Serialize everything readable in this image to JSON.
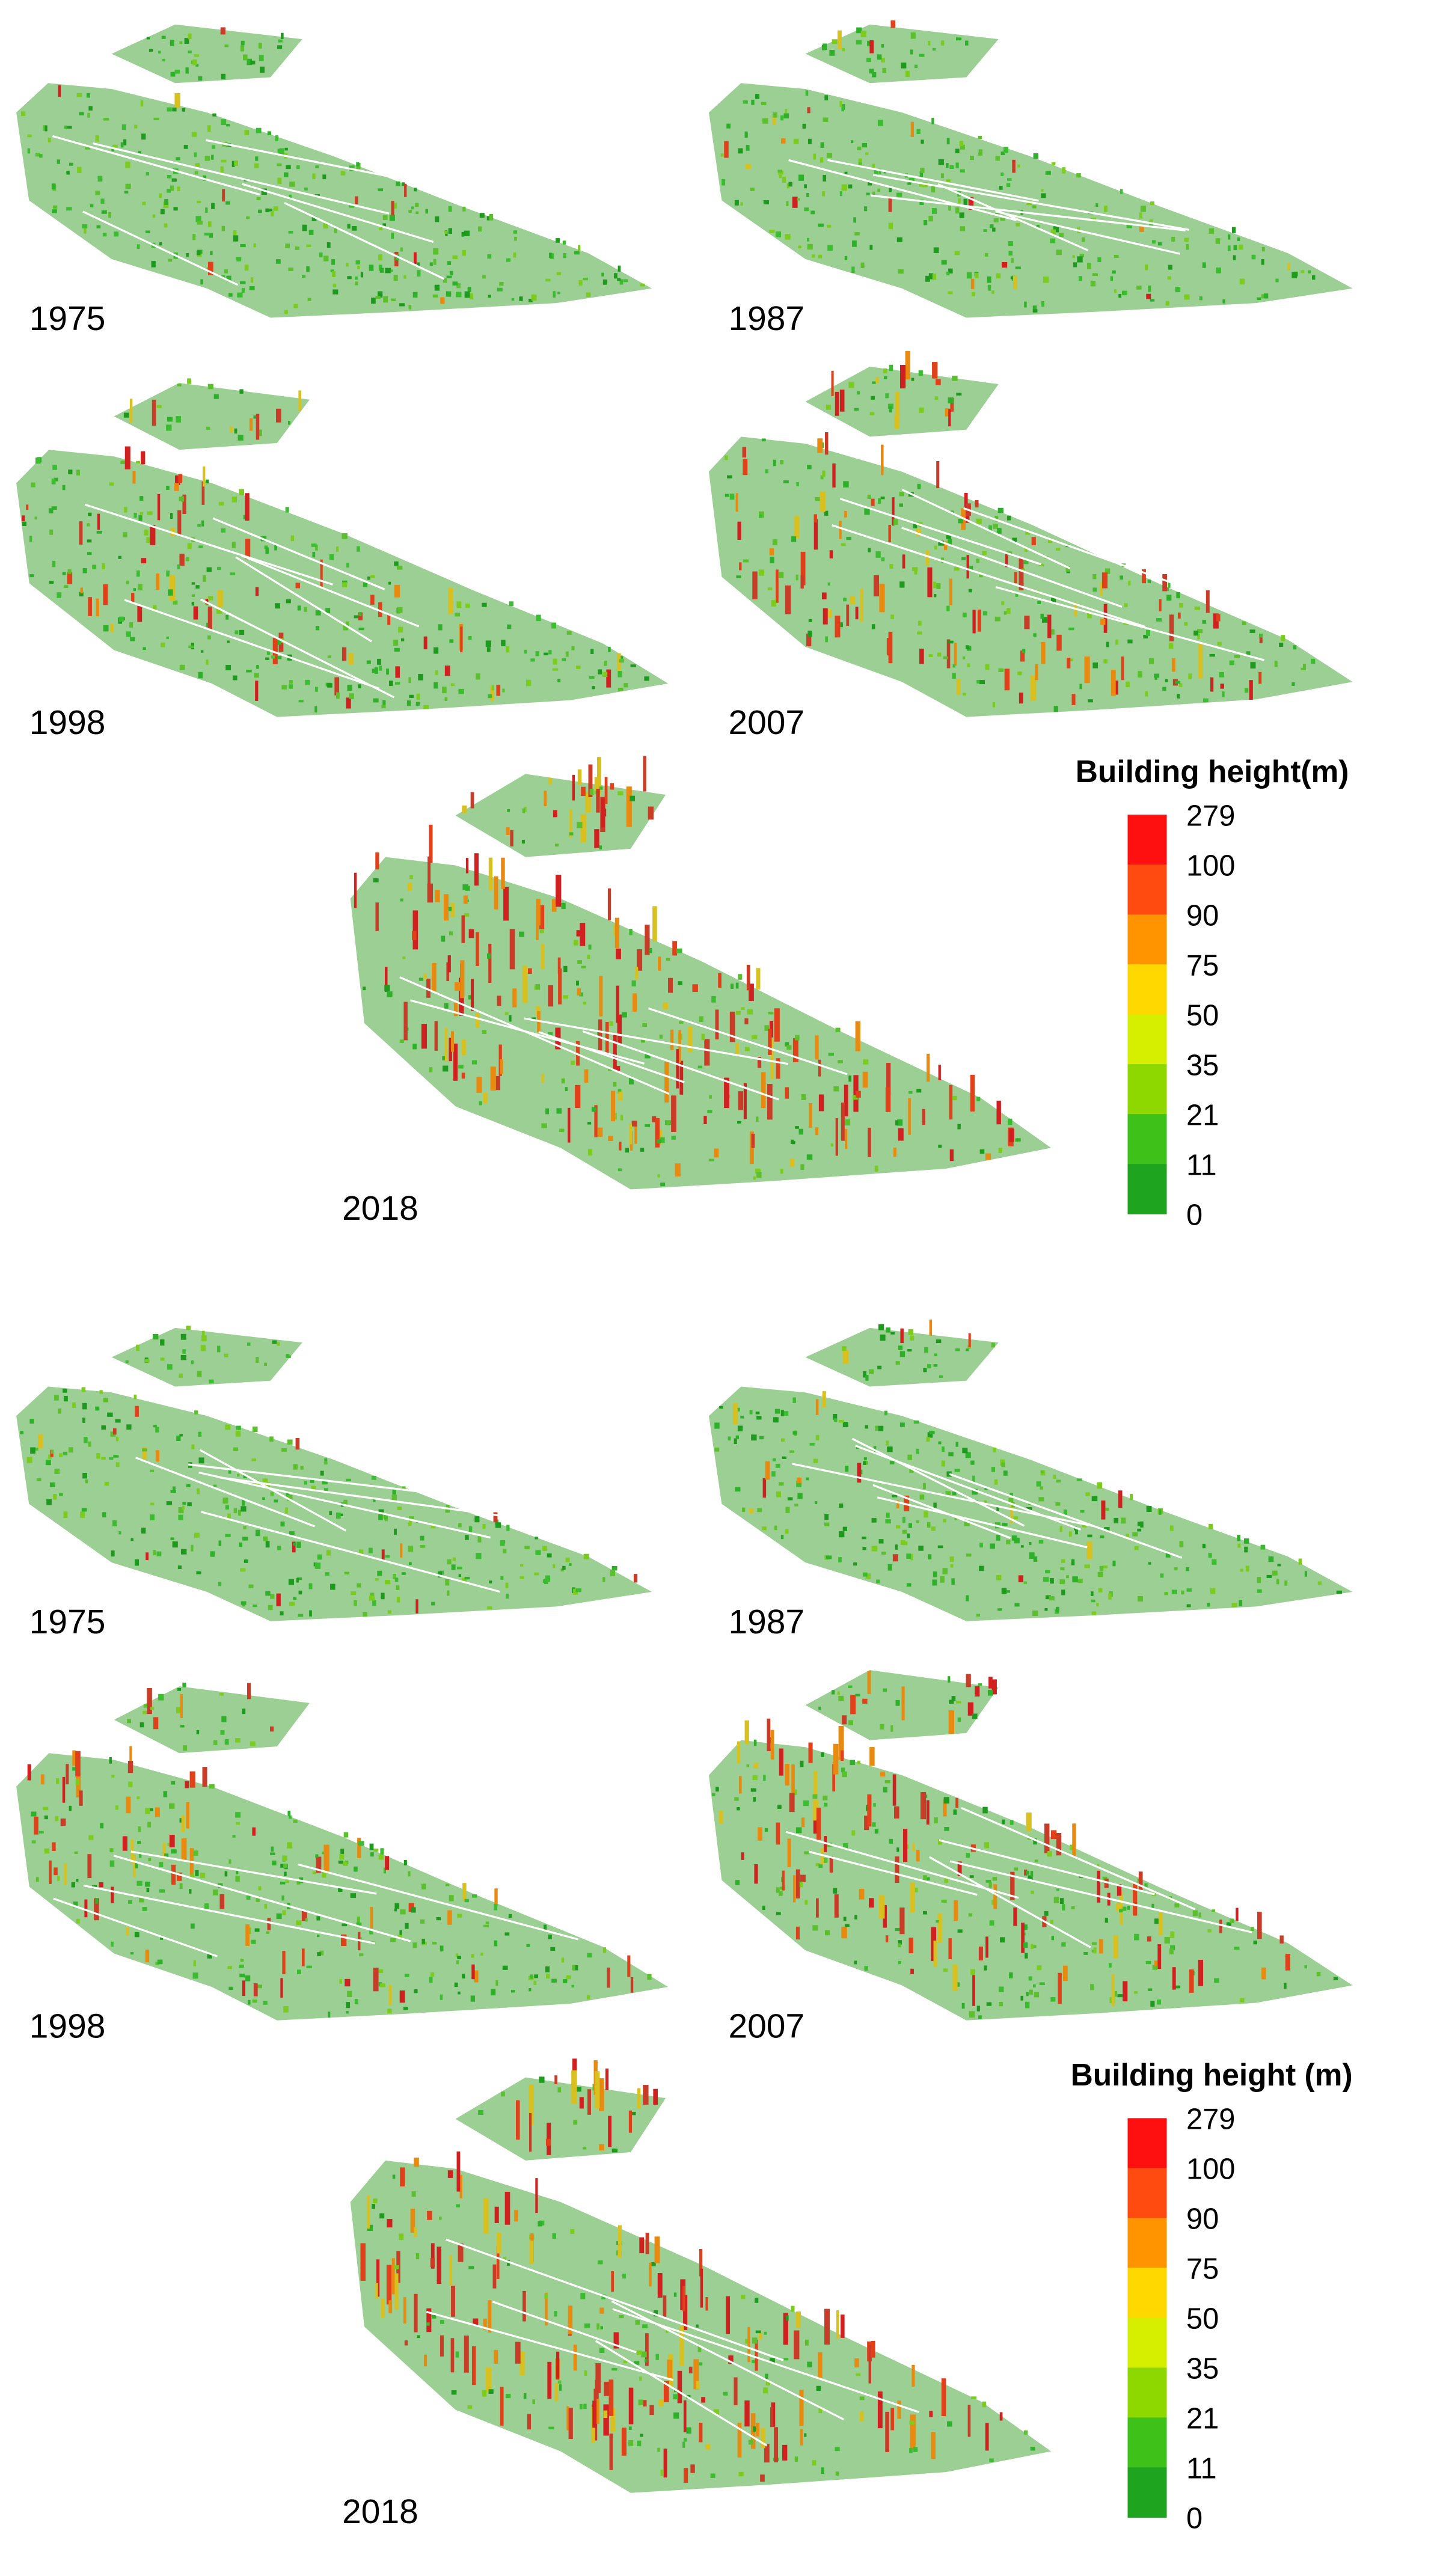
{
  "panels": [
    {
      "maps": [
        {
          "label": "1975"
        },
        {
          "label": "1987"
        },
        {
          "label": "1998"
        },
        {
          "label": "2007"
        },
        {
          "label": "2018"
        }
      ],
      "legend": {
        "title": "Building height(m)",
        "labels": [
          "279",
          "100",
          "90",
          "75",
          "50",
          "35",
          "21",
          "11",
          "0"
        ],
        "colors": [
          "#ff1010",
          "#ff4a10",
          "#ff9400",
          "#ffd800",
          "#d6ee00",
          "#8ed800",
          "#3ec21a",
          "#1ea41e"
        ]
      }
    },
    {
      "maps": [
        {
          "label": "1975"
        },
        {
          "label": "1987"
        },
        {
          "label": "1998"
        },
        {
          "label": "2007"
        },
        {
          "label": "2018"
        }
      ],
      "legend": {
        "title": "Building height (m)",
        "labels": [
          "279",
          "100",
          "90",
          "75",
          "50",
          "35",
          "21",
          "11",
          "0"
        ],
        "colors": [
          "#ff1010",
          "#ff4a10",
          "#ff9400",
          "#ffd800",
          "#d6ee00",
          "#8ed800",
          "#3ec21a",
          "#1ea41e"
        ]
      }
    }
  ]
}
